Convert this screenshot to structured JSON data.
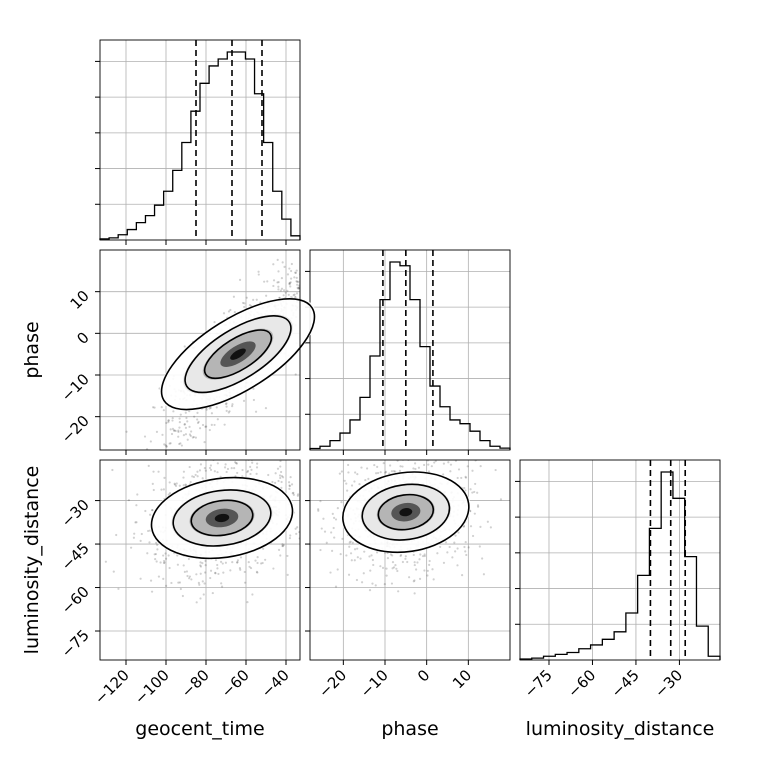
{
  "chart_data": {
    "type": "corner",
    "parameters": [
      "geocent_time",
      "phase",
      "luminosity_distance"
    ],
    "axes": {
      "geocent_time": {
        "range": [
          -133,
          -33
        ],
        "ticks": [
          -120,
          -100,
          -80,
          -60,
          -40
        ]
      },
      "phase": {
        "range": [
          -28,
          20
        ],
        "ticks": [
          -20,
          -10,
          0,
          10
        ]
      },
      "luminosity_distance": {
        "range": [
          -85,
          -16
        ],
        "ticks": [
          -75,
          -60,
          -45,
          -30
        ]
      }
    },
    "histograms": [
      {
        "parameter": "geocent_time",
        "bins": [
          -133,
          -33
        ],
        "counts": [
          0.3,
          0.6,
          1.5,
          3,
          5,
          7,
          10,
          14,
          20,
          28,
          37,
          45,
          50,
          52,
          54,
          54,
          52,
          42,
          28,
          14,
          6,
          1.2
        ],
        "quantiles": [
          -85,
          -67,
          -52
        ]
      },
      {
        "parameter": "phase",
        "bins": [
          -28,
          20
        ],
        "counts": [
          0.8,
          2,
          5,
          9,
          16,
          28,
          50,
          80,
          100,
          98,
          80,
          55,
          34,
          23,
          16,
          14,
          10,
          5,
          2,
          1
        ],
        "quantiles": [
          -10.5,
          -5,
          1.5
        ]
      },
      {
        "parameter": "luminosity_distance",
        "bins": [
          -85,
          -16
        ],
        "counts": [
          0.5,
          1,
          2,
          3,
          4,
          6,
          8,
          11,
          15,
          25,
          45,
          70,
          100,
          86,
          55,
          18,
          2
        ],
        "quantiles": [
          -40,
          -33,
          -28
        ]
      }
    ],
    "scatter_2d": [
      {
        "x": "geocent_time",
        "y": "phase",
        "correlation": "positive",
        "center": [
          -64,
          -5
        ]
      },
      {
        "x": "geocent_time",
        "y": "luminosity_distance",
        "center": [
          -72,
          -36
        ]
      },
      {
        "x": "phase",
        "y": "luminosity_distance",
        "center": [
          -5,
          -34
        ]
      }
    ],
    "xlabels": [
      "geocent_time",
      "phase",
      "luminosity_distance"
    ],
    "ylabels": [
      "phase",
      "luminosity_distance"
    ],
    "grid": true
  }
}
